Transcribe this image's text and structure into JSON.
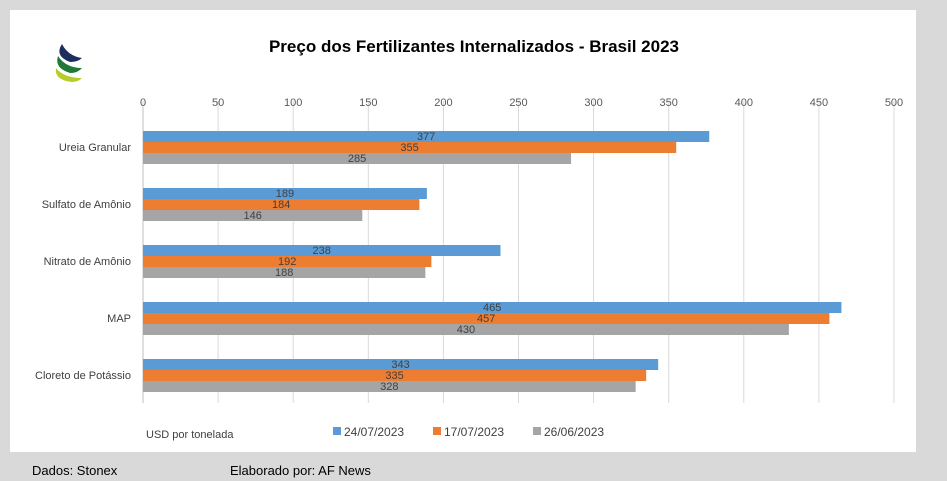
{
  "chart_data": {
    "type": "bar",
    "orientation": "horizontal",
    "title": "Preço dos Fertilizantes Internalizados  - Brasil 2023",
    "categories": [
      "Ureia Granular",
      "Sulfato de Amônio",
      "Nitrato de Amônio",
      "MAP",
      "Cloreto de Potássio"
    ],
    "series": [
      {
        "name": "24/07/2023",
        "color": "#5b9bd5",
        "values": [
          377,
          189,
          238,
          465,
          343
        ]
      },
      {
        "name": "17/07/2023",
        "color": "#ed7d31",
        "values": [
          355,
          184,
          192,
          457,
          335
        ]
      },
      {
        "name": "26/06/2023",
        "color": "#a5a5a5",
        "values": [
          285,
          146,
          188,
          430,
          328
        ]
      }
    ],
    "xlim": [
      0,
      500
    ],
    "xticks": [
      0,
      50,
      100,
      150,
      200,
      250,
      300,
      350,
      400,
      450,
      500
    ],
    "xlabel": "USD por tonelada",
    "grid": true,
    "legend_position": "bottom"
  },
  "footer": {
    "source": "Dados: Stonex",
    "credit": "Elaborado por: AF News"
  },
  "logo": {
    "colors": [
      "#1b2e5e",
      "#1f7a3a",
      "#b8cc2a"
    ]
  }
}
